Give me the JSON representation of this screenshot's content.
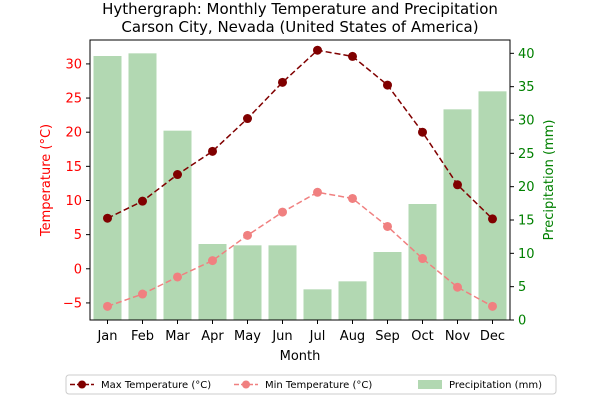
{
  "chart_data": {
    "type": "bar+line",
    "title_line1": "Hythergraph: Monthly Temperature and Precipitation",
    "title_line2": "Carson City, Nevada (United States of America)",
    "xlabel": "Month",
    "ylabel_left": "Temperature (°C)",
    "ylabel_right": "Precipitation (mm)",
    "categories": [
      "Jan",
      "Feb",
      "Mar",
      "Apr",
      "May",
      "Jun",
      "Jul",
      "Aug",
      "Sep",
      "Oct",
      "Nov",
      "Dec"
    ],
    "ylim_left": [
      -7.5,
      33.5
    ],
    "ylim_right": [
      0,
      42
    ],
    "yticks_left": [
      -5,
      0,
      5,
      10,
      15,
      20,
      25,
      30
    ],
    "yticks_right": [
      0,
      5,
      10,
      15,
      20,
      25,
      30,
      35,
      40
    ],
    "series": [
      {
        "name": "Max Temperature (°C)",
        "kind": "line",
        "axis": "left",
        "color": "#800000",
        "values": [
          7.4,
          9.9,
          13.8,
          17.2,
          22.0,
          27.3,
          32.0,
          31.1,
          26.9,
          20.0,
          12.3,
          7.3
        ]
      },
      {
        "name": "Min Temperature (°C)",
        "kind": "line",
        "axis": "left",
        "color": "#f08080",
        "values": [
          -5.5,
          -3.7,
          -1.2,
          1.2,
          4.9,
          8.3,
          11.2,
          10.3,
          6.2,
          1.5,
          -2.7,
          -5.5
        ]
      },
      {
        "name": "Precipitation (mm)",
        "kind": "bar",
        "axis": "right",
        "color": "#b2d8b2",
        "values": [
          39.6,
          40.0,
          28.4,
          11.4,
          11.2,
          11.2,
          4.6,
          5.8,
          10.2,
          17.4,
          31.6,
          34.3
        ]
      }
    ],
    "legend_position": "bottom-center",
    "grid": false,
    "colors": {
      "left_axis": "#ff0000",
      "right_axis": "#008000"
    }
  }
}
